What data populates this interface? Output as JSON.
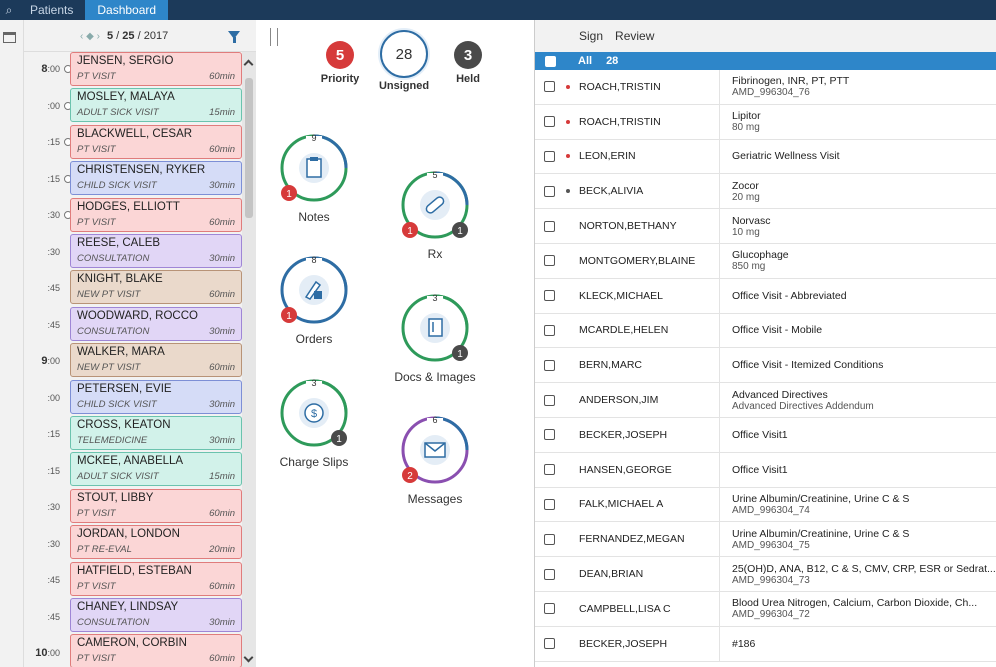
{
  "nav": {
    "tabs": [
      {
        "label": "Patients"
      },
      {
        "label": "Dashboard"
      }
    ]
  },
  "schedule": {
    "date": {
      "month": "5",
      "day": "25",
      "year": "2017",
      "sep": "/"
    },
    "times": [
      {
        "hr": "8",
        "min": ":00"
      },
      {
        "hr": "",
        "min": ":00"
      },
      {
        "hr": "",
        "min": ":15"
      },
      {
        "hr": "",
        "min": ":15"
      },
      {
        "hr": "",
        "min": ":30"
      },
      {
        "hr": "",
        "min": ":30"
      },
      {
        "hr": "",
        "min": ":45"
      },
      {
        "hr": "",
        "min": ":45"
      },
      {
        "hr": "9",
        "min": ":00"
      },
      {
        "hr": "",
        "min": ":00"
      },
      {
        "hr": "",
        "min": ":15"
      },
      {
        "hr": "",
        "min": ":15"
      },
      {
        "hr": "",
        "min": ":30"
      },
      {
        "hr": "",
        "min": ":30"
      },
      {
        "hr": "",
        "min": ":45"
      },
      {
        "hr": "",
        "min": ":45"
      },
      {
        "hr": "10",
        "min": ":00"
      }
    ],
    "appointments": [
      {
        "name": "JENSEN, SERGIO",
        "type": "PT VISIT",
        "duration": "60min",
        "color": "red"
      },
      {
        "name": "MOSLEY, MALAYA",
        "type": "ADULT SICK VISIT",
        "duration": "15min",
        "color": "teal"
      },
      {
        "name": "BLACKWELL, CESAR",
        "type": "PT VISIT",
        "duration": "60min",
        "color": "red"
      },
      {
        "name": "CHRISTENSEN, RYKER",
        "type": "CHILD SICK VISIT",
        "duration": "30min",
        "color": "blue"
      },
      {
        "name": "HODGES, ELLIOTT",
        "type": "PT VISIT",
        "duration": "60min",
        "color": "red"
      },
      {
        "name": "REESE, CALEB",
        "type": "CONSULTATION",
        "duration": "30min",
        "color": "purple"
      },
      {
        "name": "KNIGHT, BLAKE",
        "type": "NEW PT VISIT",
        "duration": "60min",
        "color": "tan"
      },
      {
        "name": "WOODWARD, ROCCO",
        "type": "CONSULTATION",
        "duration": "30min",
        "color": "purple"
      },
      {
        "name": "WALKER, MARA",
        "type": "NEW PT VISIT",
        "duration": "60min",
        "color": "tan"
      },
      {
        "name": "PETERSEN, EVIE",
        "type": "CHILD SICK VISIT",
        "duration": "30min",
        "color": "blue"
      },
      {
        "name": "CROSS, KEATON",
        "type": "TELEMEDICINE",
        "duration": "30min",
        "color": "teal"
      },
      {
        "name": "MCKEE, ANABELLA",
        "type": "ADULT SICK VISIT",
        "duration": "15min",
        "color": "teal"
      },
      {
        "name": "STOUT, LIBBY",
        "type": "PT VISIT",
        "duration": "60min",
        "color": "red"
      },
      {
        "name": "JORDAN, LONDON",
        "type": "PT RE-EVAL",
        "duration": "20min",
        "color": "red"
      },
      {
        "name": "HATFIELD, ESTEBAN",
        "type": "PT VISIT",
        "duration": "60min",
        "color": "red"
      },
      {
        "name": "CHANEY, LINDSAY",
        "type": "CONSULTATION",
        "duration": "30min",
        "color": "purple"
      },
      {
        "name": "CAMERON, CORBIN",
        "type": "PT VISIT",
        "duration": "60min",
        "color": "red"
      }
    ]
  },
  "summary": {
    "priority": {
      "count": "5",
      "label": "Priority",
      "color": "#d63a3a"
    },
    "unsigned": {
      "count": "28",
      "label": "Unsigned",
      "color": "#2e6da4"
    },
    "held": {
      "count": "3",
      "label": "Held",
      "color": "#4a4a4a"
    }
  },
  "widgets": [
    {
      "name": "notes",
      "label": "Notes",
      "count": "9",
      "icon": "clipboard-icon",
      "red": "1",
      "gray": ""
    },
    {
      "name": "rx",
      "label": "Rx",
      "count": "5",
      "icon": "pill-icon",
      "red": "1",
      "gray": "1"
    },
    {
      "name": "orders",
      "label": "Orders",
      "count": "8",
      "icon": "orders-icon",
      "red": "1",
      "gray": ""
    },
    {
      "name": "docs-images",
      "label": "Docs & Images",
      "count": "3",
      "icon": "document-icon",
      "red": "",
      "gray": "1"
    },
    {
      "name": "charge-slips",
      "label": "Charge Slips",
      "count": "3",
      "icon": "dollar-icon",
      "red": "",
      "gray": "1"
    },
    {
      "name": "messages",
      "label": "Messages",
      "count": "6",
      "icon": "envelope-icon",
      "red": "2",
      "gray": ""
    }
  ],
  "list": {
    "toolbar": {
      "sign": "Sign",
      "review": "Review"
    },
    "all_label": "All",
    "all_count": "28",
    "rows": [
      {
        "patient": "ROACH,TRISTIN",
        "line1": "Fibrinogen, INR, PT, PTT",
        "line2": "AMD_996304_76",
        "flag": "red"
      },
      {
        "patient": "ROACH,TRISTIN",
        "line1": "Lipitor",
        "line2": "80 mg",
        "flag": "red"
      },
      {
        "patient": "LEON,ERIN",
        "line1": "Geriatric Wellness Visit",
        "line2": "",
        "flag": "red"
      },
      {
        "patient": "BECK,ALIVIA",
        "line1": "Zocor",
        "line2": "20 mg",
        "flag": "gray"
      },
      {
        "patient": "NORTON,BETHANY",
        "line1": "Norvasc",
        "line2": "10 mg",
        "flag": ""
      },
      {
        "patient": "MONTGOMERY,BLAINE",
        "line1": "Glucophage",
        "line2": "850 mg",
        "flag": ""
      },
      {
        "patient": "KLECK,MICHAEL",
        "line1": "Office Visit - Abbreviated",
        "line2": "",
        "flag": ""
      },
      {
        "patient": "MCARDLE,HELEN",
        "line1": "Office Visit - Mobile",
        "line2": "",
        "flag": ""
      },
      {
        "patient": "BERN,MARC",
        "line1": "Office Visit - Itemized Conditions",
        "line2": "",
        "flag": ""
      },
      {
        "patient": "ANDERSON,JIM",
        "line1": "Advanced Directives",
        "line2": "Advanced Directives Addendum",
        "flag": ""
      },
      {
        "patient": "BECKER,JOSEPH",
        "line1": "Office Visit1",
        "line2": "",
        "flag": ""
      },
      {
        "patient": "HANSEN,GEORGE",
        "line1": "Office Visit1",
        "line2": "",
        "flag": ""
      },
      {
        "patient": "FALK,MICHAEL A",
        "line1": "Urine Albumin/Creatinine, Urine C & S",
        "line2": "AMD_996304_74",
        "flag": ""
      },
      {
        "patient": "FERNANDEZ,MEGAN",
        "line1": "Urine Albumin/Creatinine, Urine C & S",
        "line2": "AMD_996304_75",
        "flag": ""
      },
      {
        "patient": "DEAN,BRIAN",
        "line1": "25(OH)D, ANA, B12, C & S, CMV, CRP, ESR or Sedrat...",
        "line2": "AMD_996304_73",
        "flag": ""
      },
      {
        "patient": "CAMPBELL,LISA C",
        "line1": "Blood Urea Nitrogen, Calcium, Carbon Dioxide, Ch...",
        "line2": "AMD_996304_72",
        "flag": ""
      },
      {
        "patient": "BECKER,JOSEPH",
        "line1": "#186",
        "line2": "",
        "flag": ""
      }
    ]
  },
  "colors": {
    "accent": "#2e86c9",
    "nav": "#1c3a5a",
    "red": "#d63a3a",
    "gray": "#4a4a4a"
  }
}
